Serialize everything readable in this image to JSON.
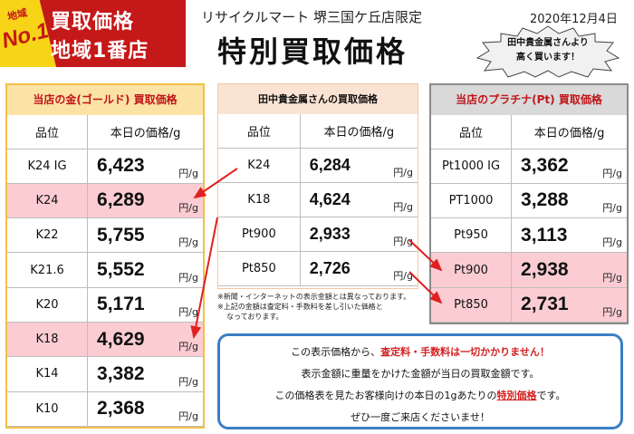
{
  "header": {
    "badge_region": "地域",
    "badge_no1": "No.1",
    "badge_line1": "買取価格",
    "badge_line2": "地域1番店",
    "shop_name": "リサイクルマート 堺三国ケ丘店限定",
    "title": "特別買取価格",
    "date": "2020年12月4日",
    "callout_line1": "田中貴金属さんより",
    "callout_line2": "高く買います！"
  },
  "colors": {
    "highlight": "#fbcdd3",
    "accent_red": "#d42020",
    "gold_border": "#f2c046",
    "message_border": "#3b7fc4"
  },
  "gold_table": {
    "title": "当店の金(ゴールド) 買取価格",
    "col_grade": "品位",
    "col_price": "本日の価格/g",
    "unit": "円/g",
    "rows": [
      {
        "grade": "K24 IG",
        "price": "6,423",
        "highlight": false
      },
      {
        "grade": "K24",
        "price": "6,289",
        "highlight": true
      },
      {
        "grade": "K22",
        "price": "5,755",
        "highlight": false
      },
      {
        "grade": "K21.6",
        "price": "5,552",
        "highlight": false
      },
      {
        "grade": "K20",
        "price": "5,171",
        "highlight": false
      },
      {
        "grade": "K18",
        "price": "4,629",
        "highlight": true
      },
      {
        "grade": "K14",
        "price": "3,382",
        "highlight": false
      },
      {
        "grade": "K10",
        "price": "2,368",
        "highlight": false
      }
    ]
  },
  "tanaka_table": {
    "title": "田中貴金属さんの買取価格",
    "col_grade": "品位",
    "col_price": "本日の価格/g",
    "unit": "円/g",
    "rows": [
      {
        "grade": "K24",
        "price": "6,284"
      },
      {
        "grade": "K18",
        "price": "4,624"
      },
      {
        "grade": "Pt900",
        "price": "2,933"
      },
      {
        "grade": "Pt850",
        "price": "2,726"
      }
    ],
    "note1": "※新聞・インターネットの表示金額とは異なっております。",
    "note2": "※上記の金額は査定料・手数料を差し引いた価格と",
    "note3": "なっております。"
  },
  "plat_table": {
    "title": "当店のプラチナ(Pt) 買取価格",
    "col_grade": "品位",
    "col_price": "本日の価格/g",
    "unit": "円/g",
    "rows": [
      {
        "grade": "Pt1000 IG",
        "price": "3,362",
        "highlight": false
      },
      {
        "grade": "PT1000",
        "price": "3,288",
        "highlight": false
      },
      {
        "grade": "Pt950",
        "price": "3,113",
        "highlight": false
      },
      {
        "grade": "Pt900",
        "price": "2,938",
        "highlight": true
      },
      {
        "grade": "Pt850",
        "price": "2,731",
        "highlight": true
      }
    ]
  },
  "message": {
    "l1_pre": "この表示価格から、",
    "l1_red": "査定料・手数料は一切かかりません！",
    "l2": "表示金額に重量をかけた金額が当日の買取金額です。",
    "l3_pre": "この価格表を見たお客様向けの本日の1gあたりの",
    "l3_red": "特別価格",
    "l3_post": "です。",
    "l4": "ぜひ一度ご来店くださいませ！"
  }
}
